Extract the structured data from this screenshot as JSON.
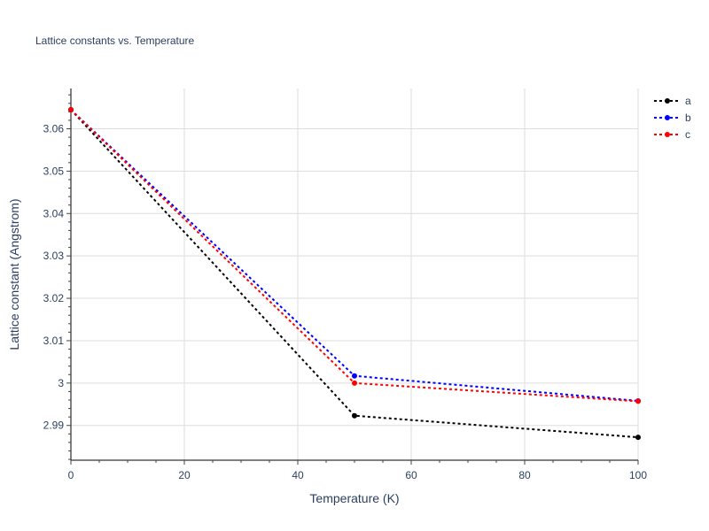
{
  "chart_data": {
    "type": "line",
    "title": "Lattice constants vs. Temperature",
    "xlabel": "Temperature (K)",
    "ylabel": "Lattice constant (Angstrom)",
    "xlim": [
      0,
      100
    ],
    "ylim": [
      2.9818,
      3.0695
    ],
    "x_ticks": [
      0,
      20,
      40,
      60,
      80,
      100
    ],
    "x_tick_labels": [
      "0",
      "20",
      "40",
      "60",
      "80",
      "100"
    ],
    "y_ticks": [
      2.99,
      3.0,
      3.01,
      3.02,
      3.03,
      3.04,
      3.05,
      3.06
    ],
    "y_tick_labels": [
      "2.99",
      "3",
      "3.01",
      "3.02",
      "3.03",
      "3.04",
      "3.05",
      "3.06"
    ],
    "grid": true,
    "legend_position": "top-right",
    "x": [
      0,
      50,
      100
    ],
    "series": [
      {
        "name": "a",
        "color": "#000000",
        "values": [
          3.0645,
          2.9923,
          2.9872
        ]
      },
      {
        "name": "b",
        "color": "#0000ff",
        "values": [
          3.0645,
          3.0017,
          2.9958
        ]
      },
      {
        "name": "c",
        "color": "#ff0000",
        "values": [
          3.0645,
          3.0,
          2.9957
        ]
      }
    ]
  }
}
